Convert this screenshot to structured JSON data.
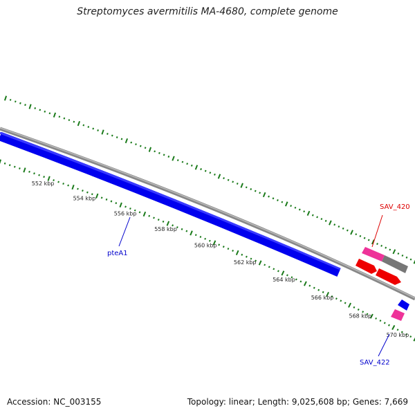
{
  "title": "Streptomyces avermitilis MA-4680, complete genome",
  "footer": {
    "accession_prefix": "Accession:",
    "accession": "NC_003155",
    "topology_prefix": "Topology:",
    "topology": "linear",
    "length_prefix": "Length:",
    "length": "9,025,608 bp",
    "genes_prefix": "Genes:",
    "genes": "7,669"
  },
  "scale": {
    "unit": "kbp",
    "major_ticks_kbp": [
      552,
      554,
      556,
      558,
      560,
      562,
      564,
      566,
      568,
      570
    ],
    "tick_labels": [
      "552 kbp",
      "554 kbp",
      "556 kbp",
      "558 kbp",
      "560 kbp",
      "562 kbp",
      "564 kbp",
      "566 kbp",
      "568 kbp",
      "570 kbp"
    ]
  },
  "colors": {
    "backbone": "#888888",
    "scale_ticks": "#1a7a1a",
    "cds": "#0000ee",
    "highlight": "#ee0000",
    "pink": "#ee3399",
    "gray_feature": "#777777"
  },
  "genes": [
    {
      "name": "pteA1",
      "color": "#0000cc"
    },
    {
      "name": "SAV_420",
      "color": "#dd0000"
    },
    {
      "name": "SAV_422",
      "color": "#0000cc"
    }
  ]
}
